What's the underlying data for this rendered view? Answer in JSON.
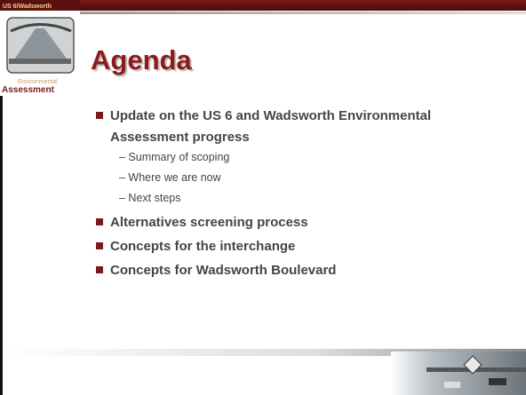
{
  "logo": {
    "top": "US 6/Wadsworth",
    "line1": "Environmental",
    "line2": "Assessment"
  },
  "title": "Agenda",
  "bullets": [
    {
      "text": "Update on the US 6 and Wadsworth Environmental Assessment progress",
      "subitems": [
        "– Summary of scoping",
        "– Where we are now",
        "– Next steps"
      ]
    },
    {
      "text": "Alternatives screening process"
    },
    {
      "text": "Concepts for the interchange"
    },
    {
      "text": "Concepts for Wadsworth Boulevard"
    }
  ]
}
